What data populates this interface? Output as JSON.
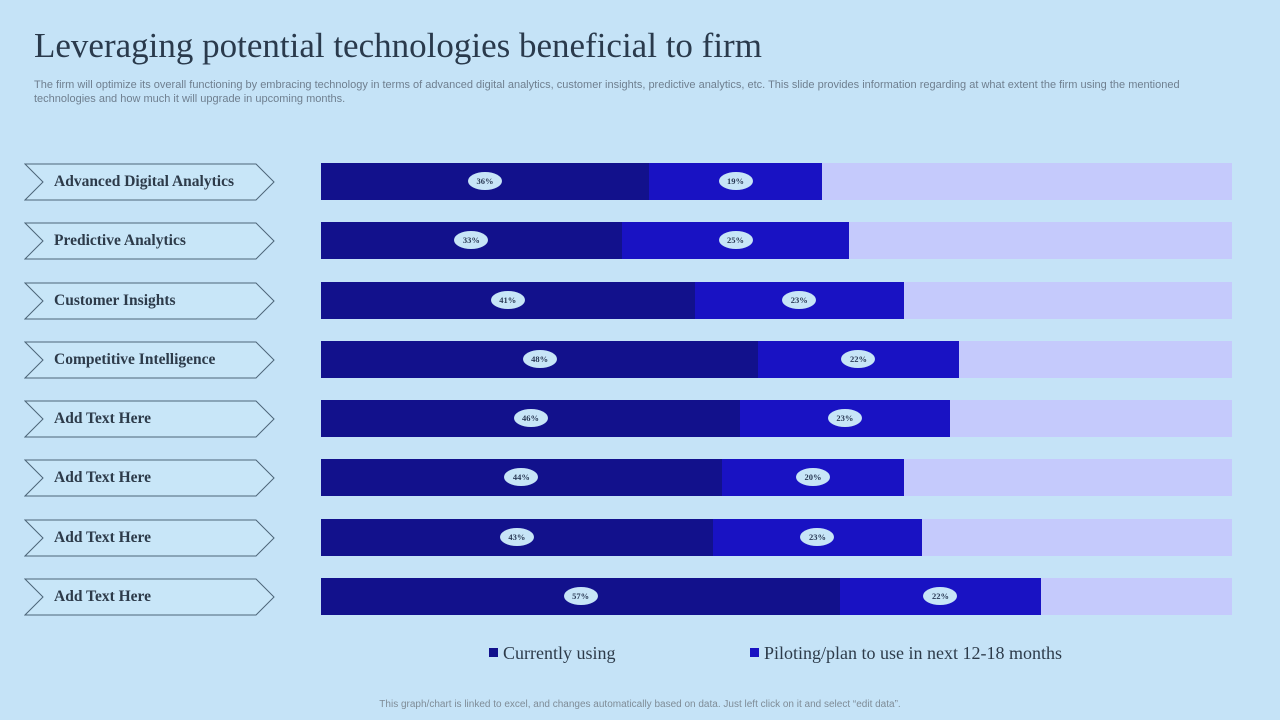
{
  "page": {
    "title": "Leveraging potential technologies beneficial to firm",
    "subtitle": "The firm will optimize its overall functioning by embracing technology in terms of advanced digital analytics, customer insights, predictive analytics, etc. This slide provides information regarding at what extent the firm using the mentioned technologies and how much it will upgrade in upcoming months.",
    "footnote": "This graph/chart is linked to excel, and changes automatically based on data. Just left click on it and select “edit data”."
  },
  "colors": {
    "background": "#c5e3f7",
    "currently_using": "#12118c",
    "piloting": "#1912c3",
    "remainder": "#c5cafc",
    "label_bubble": "#c7e5f7"
  },
  "chart_data": {
    "type": "bar",
    "orientation": "horizontal",
    "stacked": true,
    "xlim": [
      0,
      100
    ],
    "value_unit": "%",
    "categories": [
      "Advanced Digital Analytics",
      "Predictive Analytics",
      "Customer Insights",
      "Competitive Intelligence",
      "Add Text Here",
      "Add Text Here",
      "Add Text Here",
      "Add Text Here"
    ],
    "series": [
      {
        "name": "Currently using",
        "values": [
          36,
          33,
          41,
          48,
          46,
          44,
          43,
          57
        ],
        "labels": [
          "36%",
          "33%",
          "41%",
          "48%",
          "46%",
          "44%",
          "43%",
          "57%"
        ]
      },
      {
        "name": "Piloting/plan to use in next 12-18 months",
        "values": [
          19,
          25,
          23,
          22,
          23,
          20,
          23,
          22
        ],
        "labels": [
          "19%",
          "25%",
          "23%",
          "22%",
          "23%",
          "20%",
          "23%",
          "22%"
        ]
      }
    ],
    "legend_position": "bottom"
  }
}
